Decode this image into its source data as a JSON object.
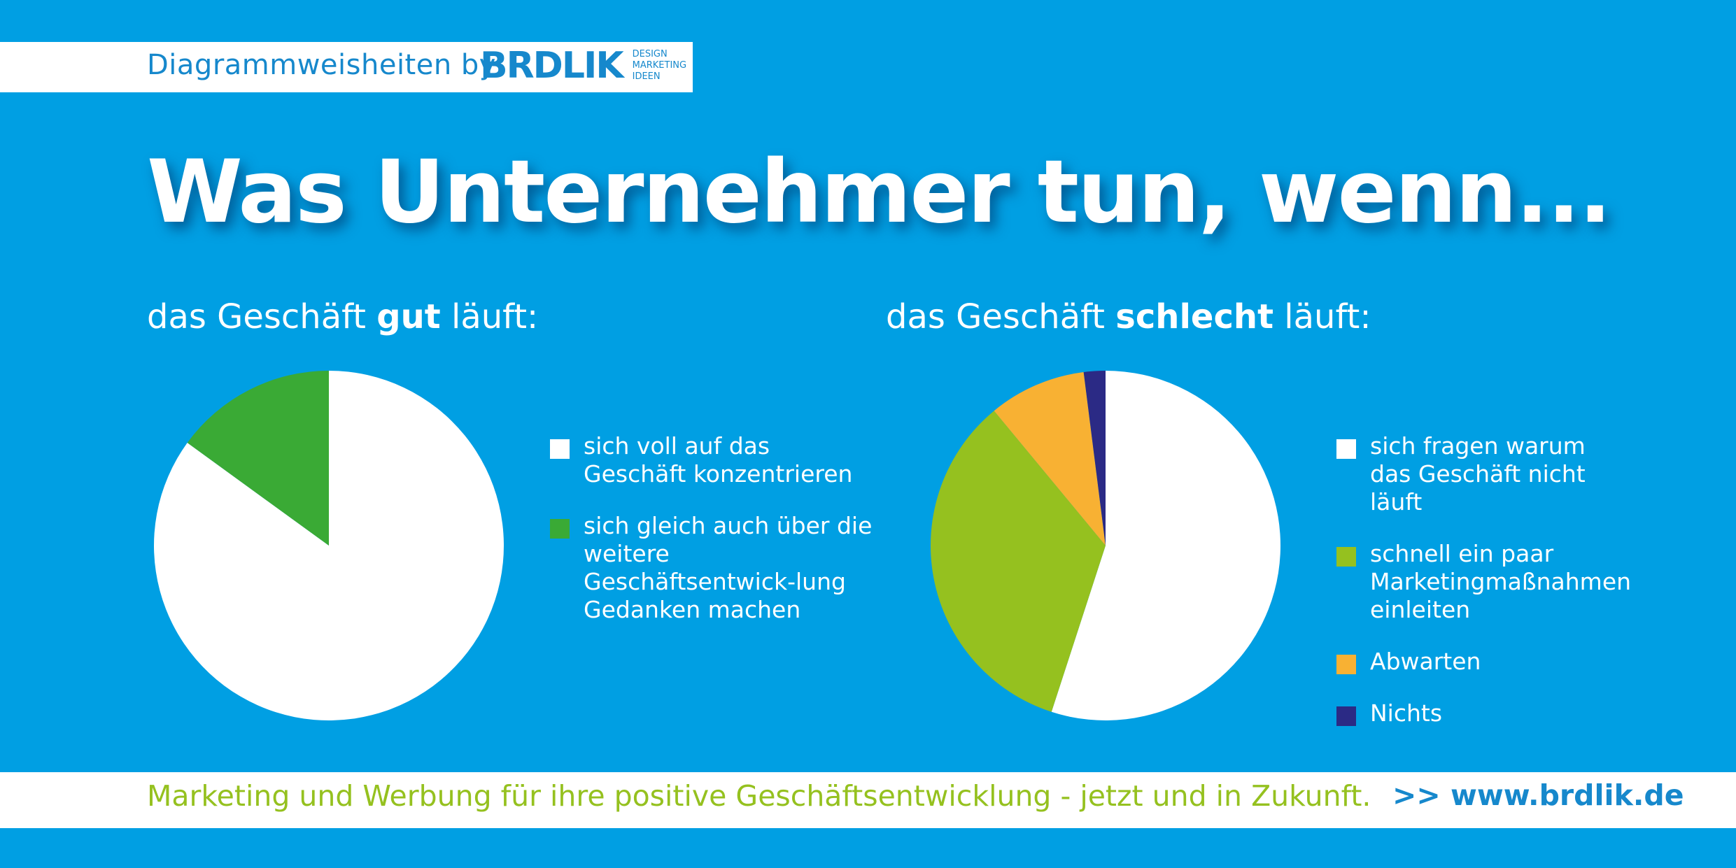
{
  "header": {
    "text": "Diagrammweisheiten by",
    "logo_text": "BRDLIK",
    "logo_tagline": [
      "DESIGN",
      "MARKETING",
      "IDEEN"
    ]
  },
  "title": "Was Unternehmer tun, wenn...",
  "colors": {
    "background": "#009fe3",
    "white": "#ffffff",
    "green": "#3aaa35",
    "lime": "#95c11f",
    "orange": "#f8b133",
    "navy": "#2b2a85",
    "brand_blue": "#1688cc"
  },
  "chart_data": [
    {
      "type": "pie",
      "title_prefix": "das Geschäft",
      "title_emphasis": "gut",
      "title_suffix": "läuft:",
      "series": [
        {
          "name": "sich voll auf das Geschäft konzentrieren",
          "value": 85,
          "color": "#ffffff"
        },
        {
          "name": "sich gleich auch über die weitere Geschäftsentwicklung Gedanken machen",
          "value": 15,
          "color": "#3aaa35"
        }
      ],
      "legend": [
        {
          "label": "sich voll auf das Geschäft konzentrieren",
          "color": "#ffffff"
        },
        {
          "label": "sich gleich auch über die weitere Geschäftsentwick-lung Gedanken machen",
          "color": "#3aaa35"
        }
      ]
    },
    {
      "type": "pie",
      "title_prefix": "das Geschäft",
      "title_emphasis": "schlecht",
      "title_suffix": "läuft:",
      "series": [
        {
          "name": "sich fragen warum das Geschäft nicht läuft",
          "value": 55,
          "color": "#ffffff"
        },
        {
          "name": "schnell ein paar Marketingmaßnahmen einleiten",
          "value": 34,
          "color": "#95c11f"
        },
        {
          "name": "Abwarten",
          "value": 9,
          "color": "#f8b133"
        },
        {
          "name": "Nichts",
          "value": 2,
          "color": "#2b2a85"
        }
      ],
      "legend": [
        {
          "label": "sich fragen warum das Geschäft nicht läuft",
          "color": "#ffffff"
        },
        {
          "label": "schnell ein paar Marketingmaßnahmen einleiten",
          "color": "#95c11f"
        },
        {
          "label": "Abwarten",
          "color": "#f8b133"
        },
        {
          "label": "Nichts",
          "color": "#2b2a85"
        }
      ]
    }
  ],
  "footer": {
    "text": "Marketing und Werbung für ihre positive Geschäftsentwicklung - jetzt und in Zukunft.",
    "link": ">> www.brdlik.de"
  }
}
